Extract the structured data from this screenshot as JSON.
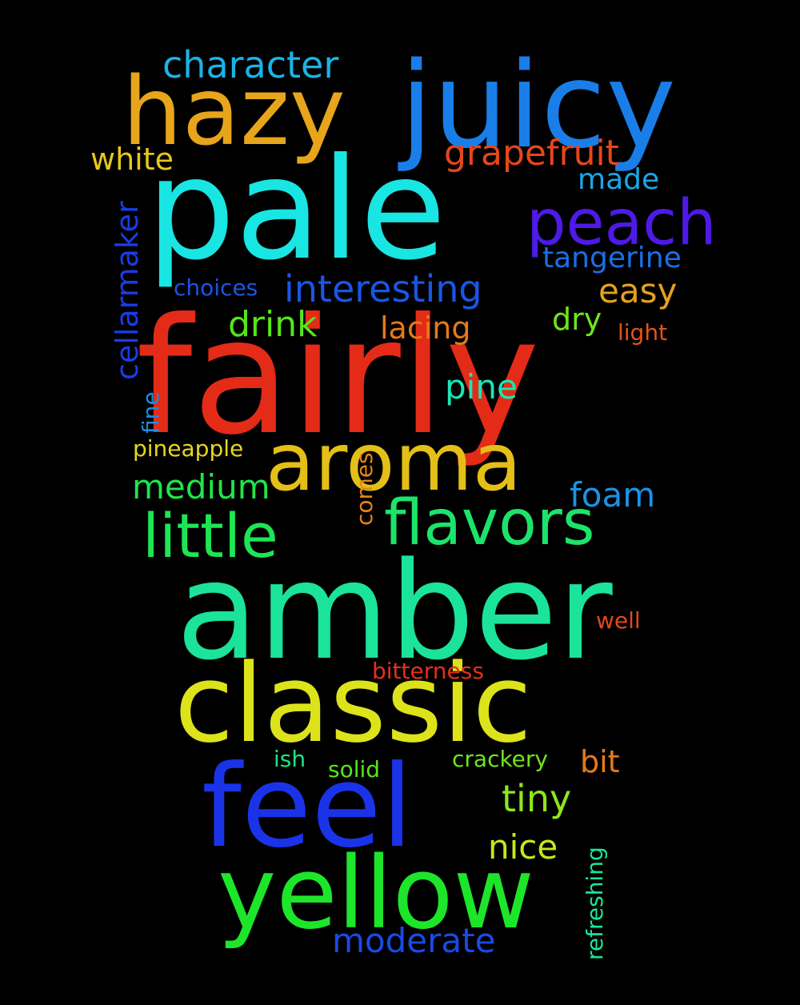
{
  "background_color": "#000000",
  "words": [
    {
      "text": "fairly",
      "color": "#e42b17"
    },
    {
      "text": "pale",
      "color": "#19e5e3"
    },
    {
      "text": "amber",
      "color": "#1be39a"
    },
    {
      "text": "juicy",
      "color": "#1a7ee8"
    },
    {
      "text": "classic",
      "color": "#dde31a"
    },
    {
      "text": "feel",
      "color": "#1a33e8"
    },
    {
      "text": "yellow",
      "color": "#1de62a"
    },
    {
      "text": "hazy",
      "color": "#e6a51a"
    },
    {
      "text": "aroma",
      "color": "#e3bf17"
    },
    {
      "text": "peach",
      "color": "#4d1ae6"
    },
    {
      "text": "flavors",
      "color": "#1de36a"
    },
    {
      "text": "little",
      "color": "#1de654"
    },
    {
      "text": "character",
      "color": "#1ab3e6"
    },
    {
      "text": "grapefruit",
      "color": "#e6471a"
    },
    {
      "text": "interesting",
      "color": "#1a55e6"
    },
    {
      "text": "white",
      "color": "#e6c81a"
    },
    {
      "text": "made",
      "color": "#1aa8e6"
    },
    {
      "text": "tangerine",
      "color": "#1a6fe6"
    },
    {
      "text": "easy",
      "color": "#e6a21a"
    },
    {
      "text": "drink",
      "color": "#55e61a"
    },
    {
      "text": "lacing",
      "color": "#e6791a"
    },
    {
      "text": "dry",
      "color": "#6fe61a"
    },
    {
      "text": "light",
      "color": "#e6531a"
    },
    {
      "text": "choices",
      "color": "#1a55e6"
    },
    {
      "text": "cellarmaker",
      "color": "#1a3ce6"
    },
    {
      "text": "pine",
      "color": "#1ae6b3"
    },
    {
      "text": "fine",
      "color": "#1a8ee6"
    },
    {
      "text": "pineapple",
      "color": "#e6d81a"
    },
    {
      "text": "medium",
      "color": "#1de64a"
    },
    {
      "text": "comes",
      "color": "#e6841a"
    },
    {
      "text": "foam",
      "color": "#1a93e6"
    },
    {
      "text": "well",
      "color": "#e6471a"
    },
    {
      "text": "bitterness",
      "color": "#e6301a"
    },
    {
      "text": "tiny",
      "color": "#8ee61a"
    },
    {
      "text": "ish",
      "color": "#1ae684"
    },
    {
      "text": "solid",
      "color": "#55e61a"
    },
    {
      "text": "crackery",
      "color": "#6fe61a"
    },
    {
      "text": "bit",
      "color": "#e6791a"
    },
    {
      "text": "nice",
      "color": "#c8e61a"
    },
    {
      "text": "refreshing",
      "color": "#1ae69a"
    },
    {
      "text": "moderate",
      "color": "#1a4ae6"
    }
  ]
}
